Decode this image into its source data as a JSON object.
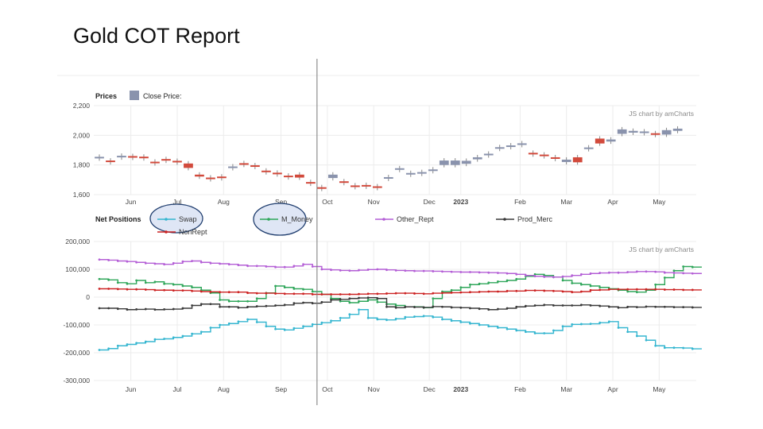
{
  "page": {
    "title": "Gold COT Report"
  },
  "colors": {
    "up": "#8a93ad",
    "down": "#d24a3c",
    "swap": "#35b6d0",
    "m_money": "#2fa65a",
    "other_rept": "#b45fd6",
    "prod_merc": "#3a3a3a",
    "nonrept": "#cc2222",
    "highlight": "#dfe6f5"
  },
  "chart_data": [
    {
      "type": "candlestick",
      "title": "Prices",
      "legend_label": "Close Price:",
      "credit": "JS chart by amCharts",
      "ylim": [
        1600,
        2200
      ],
      "y_ticks": [
        1600,
        1800,
        2000,
        2200
      ],
      "y_tick_labels": [
        "1,600",
        "1,800",
        "2,000",
        "2,200"
      ],
      "x_labels": [
        "Jun",
        "Jul",
        "Aug",
        "Sep",
        "Oct",
        "Nov",
        "Dec",
        "2023",
        "Feb",
        "Mar",
        "Apr",
        "May"
      ],
      "x_label_pos": [
        1.7,
        4.2,
        6.7,
        9.8,
        12.3,
        14.8,
        17.8,
        19.5,
        22.7,
        25.2,
        27.7,
        30.2
      ],
      "month_lines": [
        1.7,
        4.2,
        6.7,
        9.8,
        12.3,
        14.8,
        17.8,
        19.5,
        22.7,
        25.2,
        27.7,
        30.2
      ],
      "x_range": [
        -0.3,
        32.2
      ],
      "cursor_x": 12.3,
      "candles": [
        {
          "o": 1848,
          "c": 1855
        },
        {
          "o": 1830,
          "c": 1825
        },
        {
          "o": 1852,
          "c": 1862
        },
        {
          "o": 1860,
          "c": 1852
        },
        {
          "o": 1856,
          "c": 1850
        },
        {
          "o": 1822,
          "c": 1816
        },
        {
          "o": 1840,
          "c": 1838
        },
        {
          "o": 1828,
          "c": 1826
        },
        {
          "o": 1810,
          "c": 1780
        },
        {
          "o": 1735,
          "c": 1722
        },
        {
          "o": 1715,
          "c": 1712
        },
        {
          "o": 1722,
          "c": 1718
        },
        {
          "o": 1786,
          "c": 1790
        },
        {
          "o": 1812,
          "c": 1806
        },
        {
          "o": 1798,
          "c": 1792
        },
        {
          "o": 1762,
          "c": 1752
        },
        {
          "o": 1748,
          "c": 1742
        },
        {
          "o": 1728,
          "c": 1720
        },
        {
          "o": 1735,
          "c": 1715
        },
        {
          "o": 1685,
          "c": 1680
        },
        {
          "o": 1650,
          "c": 1640
        },
        {
          "o": 1712,
          "c": 1735
        },
        {
          "o": 1690,
          "c": 1680
        },
        {
          "o": 1662,
          "c": 1658
        },
        {
          "o": 1665,
          "c": 1660
        },
        {
          "o": 1656,
          "c": 1652
        },
        {
          "o": 1712,
          "c": 1718
        },
        {
          "o": 1772,
          "c": 1778
        },
        {
          "o": 1742,
          "c": 1746
        },
        {
          "o": 1748,
          "c": 1752
        },
        {
          "o": 1766,
          "c": 1770
        },
        {
          "o": 1800,
          "c": 1830
        },
        {
          "o": 1800,
          "c": 1830
        },
        {
          "o": 1808,
          "c": 1828
        },
        {
          "o": 1838,
          "c": 1852
        },
        {
          "o": 1872,
          "c": 1876
        },
        {
          "o": 1912,
          "c": 1920
        },
        {
          "o": 1928,
          "c": 1932
        },
        {
          "o": 1938,
          "c": 1946
        },
        {
          "o": 1882,
          "c": 1878
        },
        {
          "o": 1870,
          "c": 1866
        },
        {
          "o": 1852,
          "c": 1848
        },
        {
          "o": 1820,
          "c": 1836
        },
        {
          "o": 1852,
          "c": 1818
        },
        {
          "o": 1912,
          "c": 1918
        },
        {
          "o": 1978,
          "c": 1945
        },
        {
          "o": 1958,
          "c": 1972
        },
        {
          "o": 2010,
          "c": 2040
        },
        {
          "o": 2018,
          "c": 2030
        },
        {
          "o": 2020,
          "c": 2026
        },
        {
          "o": 2014,
          "c": 2008
        },
        {
          "o": 2005,
          "c": 2035
        },
        {
          "o": 2030,
          "c": 2045
        }
      ]
    },
    {
      "type": "line",
      "title": "Net Positions",
      "credit": "JS chart by amCharts",
      "ylim": [
        -300000,
        200000
      ],
      "y_ticks": [
        -300000,
        -200000,
        -100000,
        0,
        100000,
        200000
      ],
      "y_tick_labels": [
        "-300,000",
        "-200,000",
        "-100,000",
        "0",
        "100,000",
        "200,000"
      ],
      "x_labels": [
        "Jun",
        "Jul",
        "Aug",
        "Sep",
        "Oct",
        "Nov",
        "Dec",
        "2023",
        "Feb",
        "Mar",
        "Apr",
        "May"
      ],
      "x_label_pos": [
        1.7,
        4.2,
        6.7,
        9.8,
        12.3,
        14.8,
        17.8,
        19.5,
        22.7,
        25.2,
        27.7,
        30.2
      ],
      "month_lines": [
        1.7,
        4.2,
        6.7,
        9.8,
        12.3,
        14.8,
        17.8,
        19.5,
        22.7,
        25.2,
        27.7,
        30.2
      ],
      "x_range": [
        -0.3,
        32.2
      ],
      "cursor_x": 12.3,
      "x": [
        0,
        0.5,
        1,
        1.5,
        2,
        2.5,
        3,
        3.5,
        4,
        4.5,
        5,
        5.5,
        6,
        6.5,
        7,
        7.5,
        8,
        8.5,
        9,
        9.5,
        10,
        10.5,
        11,
        11.5,
        12,
        12.5,
        13,
        13.5,
        14,
        14.5,
        15,
        15.5,
        16,
        16.5,
        17,
        17.5,
        18,
        18.5,
        19,
        19.5,
        20,
        20.5,
        21,
        21.5,
        22,
        22.5,
        23,
        23.5,
        24,
        24.5,
        25,
        25.5,
        26,
        26.5,
        27,
        27.5,
        28,
        28.5,
        29,
        29.5,
        30,
        30.5,
        31,
        31.5,
        32
      ],
      "series": [
        {
          "name": "Swap",
          "color_key": "swap",
          "values": [
            -190000,
            -185000,
            -175000,
            -170000,
            -165000,
            -160000,
            -152000,
            -150000,
            -145000,
            -140000,
            -132000,
            -125000,
            -110000,
            -100000,
            -95000,
            -88000,
            -80000,
            -90000,
            -105000,
            -115000,
            -118000,
            -112000,
            -105000,
            -98000,
            -92000,
            -85000,
            -75000,
            -62000,
            -45000,
            -75000,
            -80000,
            -82000,
            -78000,
            -72000,
            -70000,
            -68000,
            -72000,
            -80000,
            -85000,
            -90000,
            -95000,
            -100000,
            -105000,
            -110000,
            -115000,
            -120000,
            -125000,
            -130000,
            -130000,
            -120000,
            -105000,
            -98000,
            -97000,
            -96000,
            -92000,
            -88000,
            -110000,
            -125000,
            -140000,
            -155000,
            -175000,
            -182000,
            -182000,
            -183000,
            -186000
          ]
        },
        {
          "name": "M_Money",
          "color_key": "m_money",
          "values": [
            65000,
            62000,
            52000,
            48000,
            60000,
            52000,
            55000,
            48000,
            45000,
            40000,
            35000,
            25000,
            15000,
            -10000,
            -15000,
            -15000,
            -15000,
            -5000,
            15000,
            40000,
            35000,
            30000,
            28000,
            20000,
            10000,
            -5000,
            -15000,
            -20000,
            -15000,
            -10000,
            -18000,
            -25000,
            -30000,
            -35000,
            -35000,
            -38000,
            -5000,
            20000,
            25000,
            35000,
            45000,
            48000,
            52000,
            56000,
            60000,
            65000,
            75000,
            82000,
            78000,
            72000,
            60000,
            50000,
            45000,
            40000,
            35000,
            30000,
            25000,
            20000,
            18000,
            25000,
            45000,
            70000,
            95000,
            110000,
            108000
          ]
        },
        {
          "name": "Other_Rept",
          "color_key": "other_rept",
          "values": [
            135000,
            133000,
            130000,
            128000,
            125000,
            122000,
            120000,
            118000,
            122000,
            128000,
            130000,
            125000,
            122000,
            120000,
            118000,
            115000,
            112000,
            112000,
            110000,
            108000,
            108000,
            112000,
            118000,
            110000,
            100000,
            98000,
            96000,
            95000,
            97000,
            99000,
            100000,
            98000,
            96000,
            95000,
            94000,
            94000,
            93000,
            92000,
            91000,
            90000,
            90000,
            89000,
            88000,
            87000,
            85000,
            82000,
            78000,
            75000,
            73000,
            72000,
            74000,
            78000,
            82000,
            85000,
            87000,
            88000,
            88000,
            90000,
            92000,
            92000,
            91000,
            88000,
            87000,
            86000,
            85000
          ]
        },
        {
          "name": "Prod_Merc",
          "color_key": "prod_merc",
          "values": [
            -40000,
            -40000,
            -42000,
            -45000,
            -44000,
            -43000,
            -45000,
            -44000,
            -43000,
            -40000,
            -30000,
            -25000,
            -25000,
            -35000,
            -35000,
            -38000,
            -35000,
            -33000,
            -32000,
            -30000,
            -28000,
            -22000,
            -20000,
            -22000,
            -18000,
            -10000,
            -8000,
            -5000,
            -3000,
            -2000,
            -5000,
            -35000,
            -38000,
            -35000,
            -36000,
            -37000,
            -34000,
            -35000,
            -37000,
            -38000,
            -40000,
            -42000,
            -45000,
            -43000,
            -40000,
            -35000,
            -32000,
            -30000,
            -28000,
            -30000,
            -30000,
            -30000,
            -28000,
            -30000,
            -32000,
            -35000,
            -38000,
            -35000,
            -36000,
            -34000,
            -35000,
            -35000,
            -36000,
            -36000,
            -37000
          ]
        },
        {
          "name": "NonRept",
          "color_key": "nonrept",
          "values": [
            30000,
            30000,
            29000,
            28000,
            28000,
            27000,
            25000,
            25000,
            24000,
            24000,
            22000,
            20000,
            19000,
            18000,
            18000,
            18000,
            15000,
            14000,
            14000,
            13000,
            12000,
            12000,
            12000,
            10000,
            10000,
            10000,
            10000,
            10000,
            11000,
            12000,
            12000,
            13000,
            14000,
            14000,
            13000,
            12000,
            14000,
            15000,
            16000,
            17000,
            18000,
            19000,
            20000,
            20000,
            22000,
            22000,
            24000,
            24000,
            23000,
            22000,
            20000,
            18000,
            20000,
            25000,
            26000,
            28000,
            28000,
            28000,
            28000,
            28000,
            28000,
            27000,
            27000,
            26000,
            26000
          ]
        }
      ],
      "legend_highlighted": [
        "Swap",
        "M_Money"
      ]
    }
  ]
}
